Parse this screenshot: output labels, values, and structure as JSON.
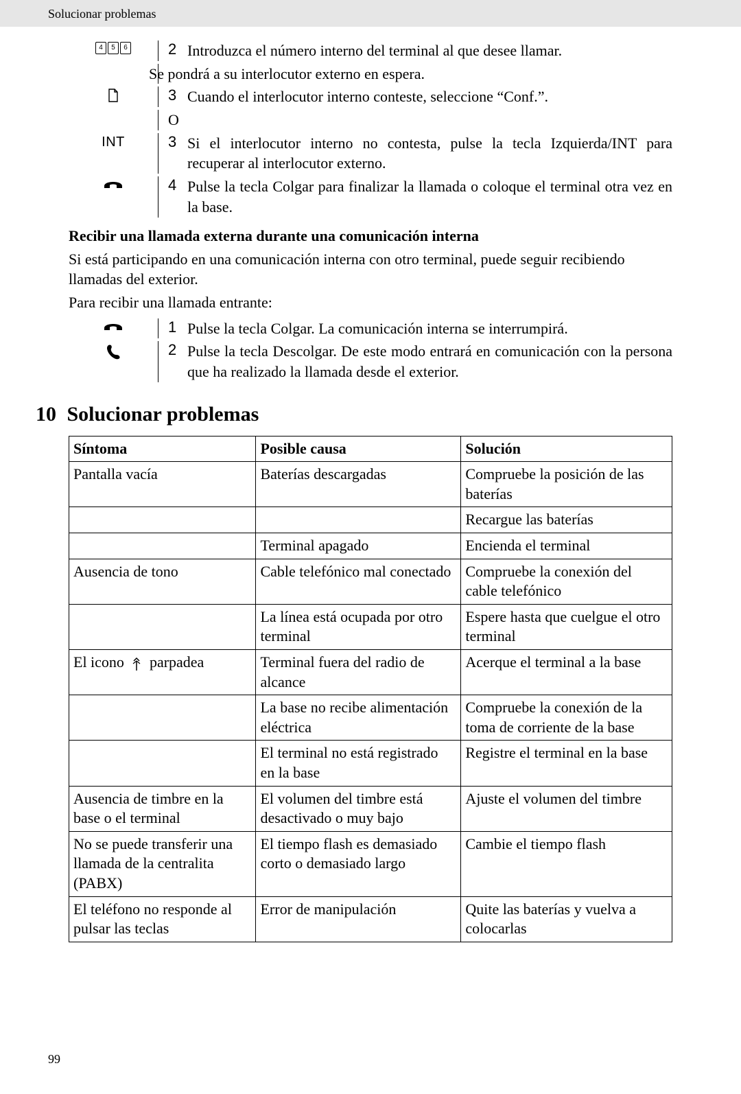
{
  "header": {
    "breadcrumb": "Solucionar problemas"
  },
  "steps1": {
    "s2": {
      "num": "2",
      "text": "Introduzca el número interno del terminal al que desee llamar."
    },
    "note": "Se pondrá a su interlocutor externo en espera.",
    "s3a": {
      "num": "3",
      "text": "Cuando el interlocutor interno conteste, seleccione “Conf.”."
    },
    "o": "O",
    "s3b": {
      "num": "3",
      "text": "Si el interlocutor interno no contesta, pulse la tecla Izquierda/INT para recuperar al interlocutor externo."
    },
    "s4": {
      "num": "4",
      "text": "Pulse la tecla Colgar para finalizar la llamada o coloque el terminal otra vez en la base."
    }
  },
  "sub1": {
    "heading": "Recibir una llamada externa durante una comunicación interna",
    "p1": "Si está participando en una comunicación interna con otro terminal, puede seguir recibiendo llamadas del exterior.",
    "p2": "Para recibir una llamada entrante:"
  },
  "steps2": {
    "s1": {
      "num": "1",
      "text": "Pulse la tecla Colgar. La comunicación interna se interrumpirá."
    },
    "s2": {
      "num": "2",
      "text": "Pulse la tecla Descolgar. De este modo entrará en comunicación con la persona que ha realizado la llamada desde el exterior."
    }
  },
  "section": {
    "num": "10",
    "title": "Solucionar problemas"
  },
  "table": {
    "headers": [
      "Síntoma",
      "Posible causa",
      "Solución"
    ],
    "rows": [
      [
        "Pantalla vacía",
        "Baterías descargadas",
        "Compruebe la posición de las baterías"
      ],
      [
        "",
        "",
        "Recargue las baterías"
      ],
      [
        "",
        "Terminal apagado",
        "Encienda el terminal"
      ],
      [
        "Ausencia de tono",
        "Cable telefónico mal conectado",
        "Compruebe la conexión del cable telefónico"
      ],
      [
        "",
        "La línea está ocupada por otro terminal",
        "Espere hasta que cuelgue el otro terminal"
      ],
      [
        "__ICONROW__",
        "Terminal fuera del radio de alcance",
        "Acerque el terminal a la base"
      ],
      [
        "",
        "La base no recibe alimentación eléctrica",
        "Compruebe la conexión de la toma de corriente de la base"
      ],
      [
        "",
        "El terminal no está registrado en la base",
        "Registre el terminal en la base"
      ],
      [
        "Ausencia de timbre en la base o el terminal",
        "El volumen del timbre está desactivado o muy bajo",
        "Ajuste el volumen del timbre"
      ],
      [
        "No se puede transferir una llamada de la centralita (PABX)",
        "El tiempo flash es demasiado corto o demasiado largo",
        "Cambie el tiempo flash"
      ],
      [
        "El teléfono no responde al pulsar las teclas",
        "Error de manipulación",
        "Quite las baterías y vuelva a colocarlas"
      ]
    ],
    "iconrow": {
      "pre": "El icono",
      "post": "parpadea"
    }
  },
  "keypad": {
    "k1": "4",
    "k2": "5",
    "k3": "6"
  },
  "labels": {
    "int": "INT"
  },
  "pageNum": "99"
}
